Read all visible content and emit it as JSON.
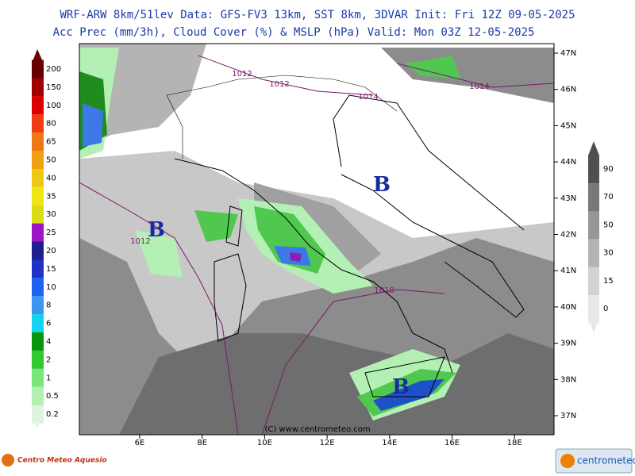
{
  "header": {
    "line1": "WRF-ARW 8km/51lev  Data: GFS-FV3 13km, SST 8km, 3DVAR  Init: Fri 12Z 09-05-2025",
    "line2": "Acc Prec (mm/3h), Cloud Cover (%) & MSLP (hPa)  Valid: Mon 03Z 12-05-2025"
  },
  "precip_scale": {
    "labels": [
      "200",
      "150",
      "100",
      "80",
      "65",
      "50",
      "40",
      "35",
      "30",
      "25",
      "20",
      "15",
      "10",
      "8",
      "6",
      "4",
      "2",
      "1",
      "0.5",
      "0.2"
    ]
  },
  "cloud_scale": {
    "labels": [
      "90",
      "70",
      "50",
      "30",
      "15",
      "0"
    ]
  },
  "map": {
    "lat_labels": [
      "47N",
      "46N",
      "45N",
      "44N",
      "43N",
      "42N",
      "41N",
      "40N",
      "39N",
      "38N",
      "37N"
    ],
    "lon_labels": [
      "6E",
      "8E",
      "10E",
      "12E",
      "14E",
      "16E",
      "18E"
    ],
    "isobar_labels": [
      "1012",
      "1012",
      "1014",
      "1014",
      "1012",
      "1010"
    ],
    "lows": [
      "B",
      "B",
      "B"
    ]
  },
  "credits": {
    "copyright": "(C) www.centrometeo.com"
  },
  "logos": {
    "left": "Centro Meteo Aquesio",
    "right": "centrometeo"
  }
}
